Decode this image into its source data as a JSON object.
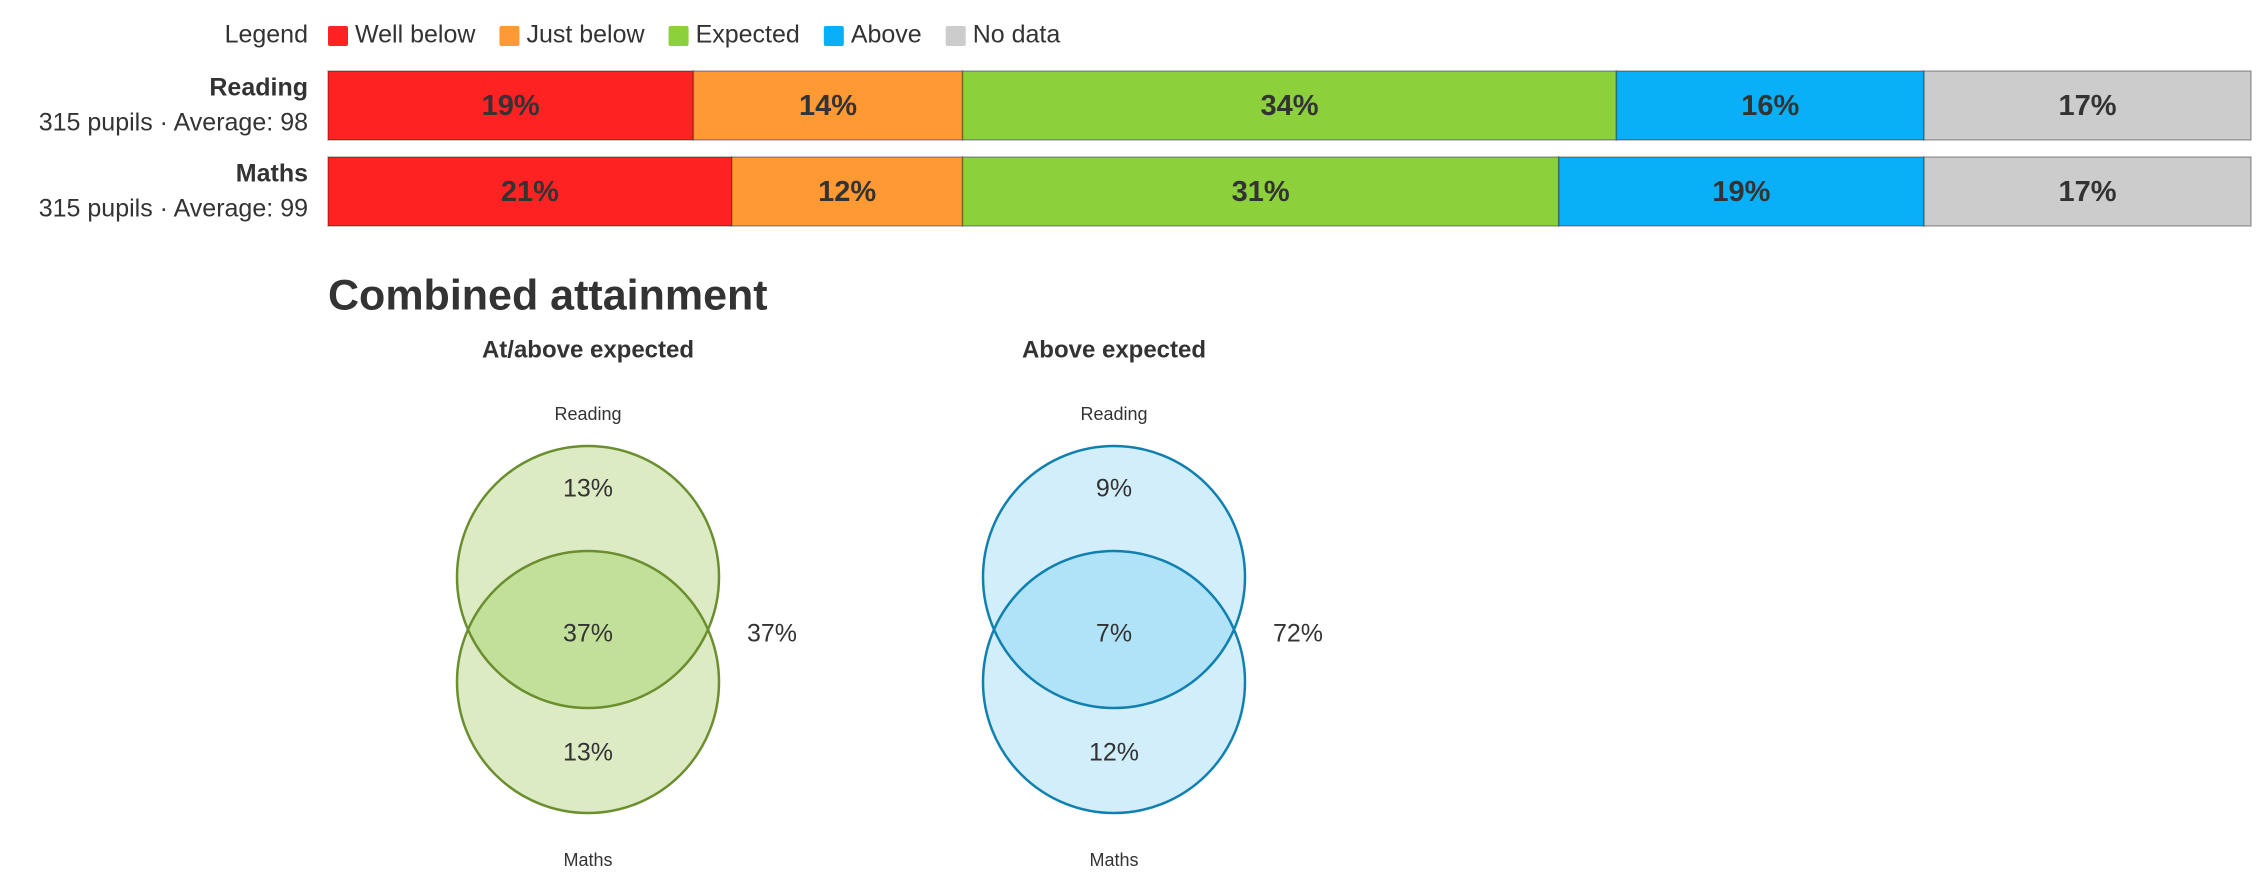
{
  "section_title": "Combined attainment",
  "chart_data": [
    {
      "type": "stacked-bar",
      "legend_title": "Legend",
      "categories": [
        "Reading",
        "Maths"
      ],
      "row_notes": [
        "315 pupils · Average:",
        "315 pupils · Average:"
      ],
      "averages": [
        98,
        99
      ],
      "xlim": [
        0,
        100
      ],
      "series": [
        {
          "name": "Well below",
          "color": "#ff2222",
          "values": [
            19,
            21
          ],
          "value_labels": [
            "19%",
            "21%"
          ]
        },
        {
          "name": "Just below",
          "color": "#ff9933",
          "values": [
            14,
            12
          ],
          "value_labels": [
            "14%",
            "12%"
          ]
        },
        {
          "name": "Expected",
          "color": "#8cd03c",
          "values": [
            34,
            31
          ],
          "value_labels": [
            "34%",
            "31%"
          ]
        },
        {
          "name": "Above",
          "color": "#0ab0f7",
          "values": [
            16,
            19
          ],
          "value_labels": [
            "16%",
            "19%"
          ]
        },
        {
          "name": "No data",
          "color": "#cccccc",
          "values": [
            17,
            17
          ],
          "value_labels": [
            "17%",
            "17%"
          ]
        }
      ]
    },
    {
      "type": "venn",
      "title": "At/above expected",
      "sets": [
        "Reading",
        "Maths"
      ],
      "values": [
        13,
        37,
        13,
        37
      ],
      "value_labels": [
        "13%",
        "37%",
        "13%",
        "37%"
      ],
      "color": "#dcebc4",
      "overlap_color": "#c3e09a",
      "stroke": "#6b8e2f"
    },
    {
      "type": "venn",
      "title": "Above expected",
      "sets": [
        "Reading",
        "Maths"
      ],
      "values": [
        9,
        7,
        12,
        72
      ],
      "value_labels": [
        "9%",
        "7%",
        "12%",
        "72%"
      ],
      "color": "#d2eefa",
      "overlap_color": "#b0e2f8",
      "stroke": "#1080b0"
    }
  ]
}
